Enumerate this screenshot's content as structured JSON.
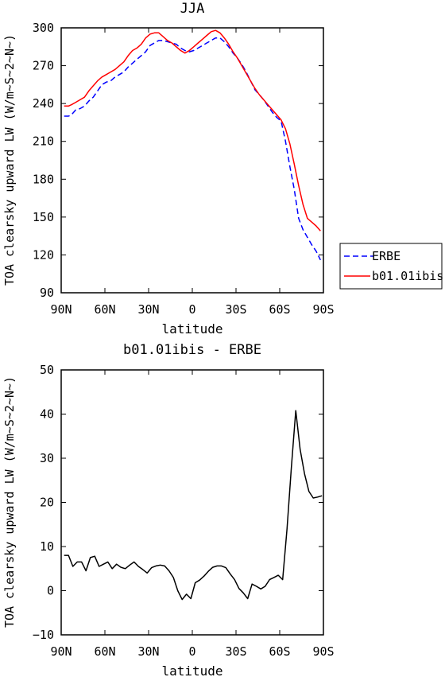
{
  "chart_data": [
    {
      "type": "line",
      "title": "JJA",
      "xlabel": "latitude",
      "ylabel": "TOA clearsky upward LW (W/m~S~2~N~)",
      "xlim": [
        -90,
        90
      ],
      "ylim": [
        90,
        300
      ],
      "x_ticks": [
        -90,
        -60,
        -30,
        0,
        30,
        60,
        90
      ],
      "x_tick_labels": [
        "90N",
        "60N",
        "30N",
        "0",
        "30S",
        "60S",
        "90S"
      ],
      "y_ticks": [
        90,
        120,
        150,
        180,
        210,
        240,
        270,
        300
      ],
      "y_tick_labels": [
        "90",
        "120",
        "150",
        "180",
        "210",
        "240",
        "270",
        "300"
      ],
      "legend_position": "right",
      "series": [
        {
          "name": "ERBE",
          "color": "#0000ff",
          "dash": "dashed",
          "x": [
            -88,
            -85,
            -83,
            -80,
            -77,
            -74,
            -71,
            -68,
            -65,
            -62,
            -59,
            -56,
            -53,
            -50,
            -47,
            -44,
            -41,
            -38,
            -35,
            -32,
            -29,
            -26,
            -23,
            -20,
            -17,
            -14,
            -11,
            -8,
            -5,
            -2,
            1,
            4,
            7,
            10,
            13,
            16,
            19,
            22,
            25,
            28,
            31,
            34,
            37,
            40,
            43,
            46,
            49,
            52,
            55,
            58,
            61,
            64,
            67,
            70,
            73,
            76,
            79,
            82,
            85,
            88
          ],
          "y": [
            230,
            230,
            231,
            235,
            236,
            238,
            242,
            245,
            250,
            255,
            257,
            258,
            261,
            263,
            265,
            269,
            272,
            275,
            278,
            281,
            286,
            288,
            290,
            290,
            289,
            288,
            287,
            284,
            282,
            281,
            282,
            284,
            286,
            288,
            290,
            292,
            292,
            289,
            285,
            280,
            276,
            271,
            265,
            258,
            251,
            247,
            243,
            238,
            233,
            229,
            226,
            210,
            190,
            172,
            149,
            140,
            134,
            128,
            123,
            116
          ]
        },
        {
          "name": "b01.01ibis",
          "color": "#ff0000",
          "dash": "solid",
          "x": [
            -88,
            -85,
            -83,
            -80,
            -77,
            -74,
            -71,
            -68,
            -65,
            -62,
            -59,
            -56,
            -53,
            -50,
            -47,
            -44,
            -41,
            -38,
            -35,
            -32,
            -29,
            -26,
            -23,
            -20,
            -17,
            -14,
            -11,
            -8,
            -5,
            -2,
            1,
            4,
            7,
            10,
            13,
            16,
            19,
            22,
            25,
            28,
            31,
            34,
            37,
            40,
            43,
            46,
            49,
            52,
            55,
            58,
            61,
            64,
            67,
            70,
            73,
            76,
            79,
            82,
            85,
            88
          ],
          "y": [
            238,
            238,
            239,
            241,
            243,
            245,
            250,
            254,
            258,
            261,
            263,
            265,
            267,
            270,
            273,
            278,
            282,
            284,
            287,
            292,
            295,
            296,
            296,
            293,
            290,
            288,
            285,
            282,
            280,
            282,
            285,
            288,
            291,
            294,
            297,
            298,
            296,
            292,
            287,
            281,
            276,
            270,
            264,
            258,
            252,
            247,
            243,
            239,
            235,
            231,
            227,
            220,
            208,
            192,
            175,
            160,
            149,
            146,
            143,
            139
          ]
        }
      ]
    },
    {
      "type": "line",
      "title": "b01.01ibis - ERBE",
      "xlabel": "latitude",
      "ylabel": "TOA clearsky upward LW (W/m~S~2~N~)",
      "xlim": [
        -90,
        90
      ],
      "ylim": [
        -10,
        50
      ],
      "x_ticks": [
        -90,
        -60,
        -30,
        0,
        30,
        60,
        90
      ],
      "x_tick_labels": [
        "90N",
        "60N",
        "30N",
        "0",
        "30S",
        "60S",
        "90S"
      ],
      "y_ticks": [
        -10,
        0,
        10,
        20,
        30,
        40,
        50
      ],
      "y_tick_labels": [
        "−10",
        "0",
        "10",
        "20",
        "30",
        "40",
        "50"
      ],
      "series": [
        {
          "color": "#000000",
          "dash": "solid",
          "x": [
            -88,
            -85,
            -82,
            -79,
            -76,
            -73,
            -70,
            -67,
            -64,
            -61,
            -58,
            -55,
            -52,
            -49,
            -46,
            -43,
            -40,
            -37,
            -34,
            -31,
            -28,
            -25,
            -22,
            -19,
            -16,
            -13,
            -10,
            -7,
            -4,
            -1,
            2,
            5,
            8,
            11,
            14,
            17,
            20,
            23,
            26,
            29,
            32,
            35,
            38,
            41,
            44,
            47,
            50,
            53,
            56,
            59,
            62,
            65,
            68,
            71,
            74,
            77,
            80,
            83,
            86,
            89
          ],
          "y": [
            8,
            8,
            5.5,
            6.5,
            6.5,
            4.5,
            7.5,
            7.8,
            5.5,
            6,
            6.5,
            5,
            6,
            5.3,
            5,
            5.8,
            6.5,
            5.5,
            4.8,
            4,
            5.2,
            5.6,
            5.8,
            5.6,
            4.5,
            3,
            0,
            -2,
            -0.8,
            -1.8,
            1.8,
            2.4,
            3.3,
            4.4,
            5.3,
            5.6,
            5.6,
            5.2,
            3.8,
            2.5,
            0.5,
            -0.5,
            -1.8,
            1.5,
            1,
            0.4,
            1,
            2.5,
            3,
            3.5,
            2.5,
            14,
            28,
            40.8,
            32,
            26.5,
            22.5,
            21,
            21.2,
            21.5
          ]
        }
      ]
    }
  ]
}
